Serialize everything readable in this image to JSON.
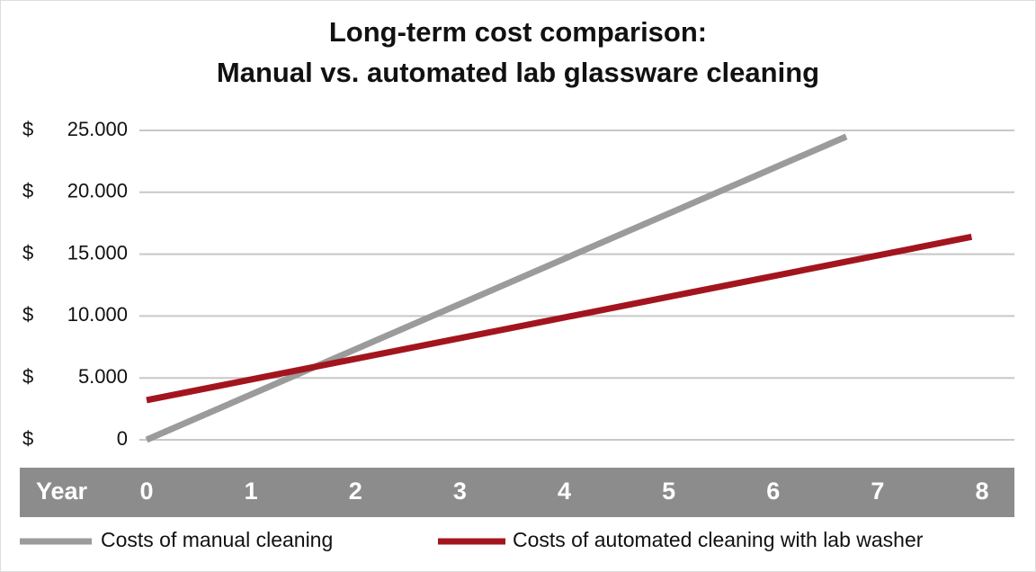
{
  "chart_data": {
    "type": "line",
    "title": [
      "Long-term cost comparison:",
      "Manual vs. automated lab glassware cleaning"
    ],
    "x_label": "Year",
    "y_prefix": "$",
    "xlim": [
      0,
      8
    ],
    "xticks": [
      0,
      1,
      2,
      3,
      4,
      5,
      6,
      7,
      8
    ],
    "ylim": [
      0,
      25000
    ],
    "yticks": [
      0,
      {
        "value": 5000,
        "label": "5.000"
      },
      {
        "value": 10000,
        "label": "10.000"
      },
      {
        "value": 15000,
        "label": "15.000"
      },
      {
        "value": 20000,
        "label": "20.000"
      },
      {
        "value": 25000,
        "label": "25.000"
      }
    ],
    "grid": true,
    "series": [
      {
        "name": "Costs of manual cleaning",
        "color": "#9b9b9b",
        "x": [
          0,
          6.7
        ],
        "values": [
          0,
          24500
        ]
      },
      {
        "name": "Costs of automated cleaning with lab washer",
        "color": "#a3151e",
        "x": [
          0,
          7.9
        ],
        "values": [
          3200,
          16400
        ]
      }
    ]
  }
}
